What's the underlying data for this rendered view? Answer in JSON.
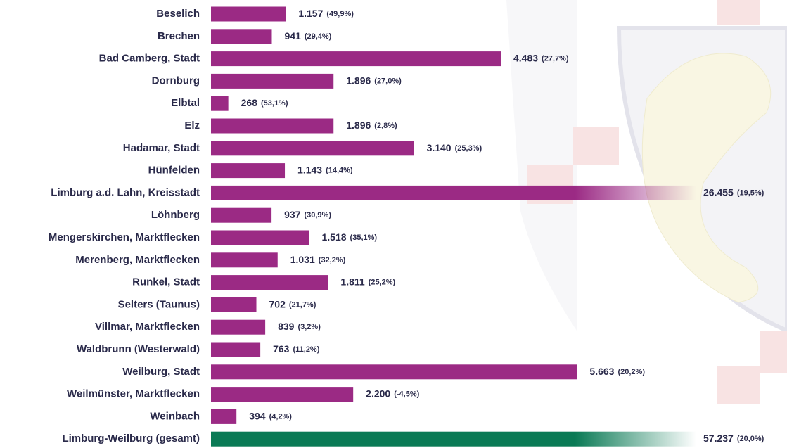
{
  "chart_data": {
    "type": "bar",
    "categories": [
      "Beselich",
      "Brechen",
      "Bad Camberg, Stadt",
      "Dornburg",
      "Elbtal",
      "Elz",
      "Hadamar, Stadt",
      "Hünfelden",
      "Limburg a.d. Lahn, Kreisstadt",
      "Löhnberg",
      "Mengerskirchen, Marktflecken",
      "Merenberg, Marktflecken",
      "Runkel, Stadt",
      "Selters (Taunus)",
      "Villmar, Marktflecken",
      "Waldbrunn (Westerwald)",
      "Weilburg, Stadt",
      "Weilmünster, Marktflecken",
      "Weinbach",
      "Limburg-Weilburg (gesamt)"
    ],
    "values": [
      1157,
      941,
      4483,
      1896,
      268,
      1896,
      3140,
      1143,
      26455,
      937,
      1518,
      1031,
      1811,
      702,
      839,
      763,
      5663,
      2200,
      394,
      57237
    ],
    "value_labels": [
      "1.157",
      "941",
      "4.483",
      "1.896",
      "268",
      "1.896",
      "3.140",
      "1.143",
      "26.455",
      "937",
      "1.518",
      "1.031",
      "1.811",
      "702",
      "839",
      "763",
      "5.663",
      "2.200",
      "394",
      "57.237"
    ],
    "changes": [
      49.9,
      29.4,
      27.7,
      27.0,
      53.1,
      2.8,
      25.3,
      14.4,
      19.5,
      30.9,
      35.1,
      32.2,
      25.2,
      21.7,
      3.2,
      11.2,
      20.2,
      -4.5,
      4.2,
      20.0
    ],
    "change_labels": [
      "(49,9%)",
      "(29,4%)",
      "(27,7%)",
      "(27,0%)",
      "(53,1%)",
      "(2,8%)",
      "(25,3%)",
      "(14,4%)",
      "(19,5%)",
      "(30,9%)",
      "(35,1%)",
      "(32,2%)",
      "(25,2%)",
      "(21,7%)",
      "(3,2%)",
      "(11,2%)",
      "(20,2%)",
      "(-4,5%)",
      "(4,2%)",
      "(20,0%)"
    ],
    "colors": [
      "#9b2a84",
      "#9b2a84",
      "#9b2a84",
      "#9b2a84",
      "#9b2a84",
      "#9b2a84",
      "#9b2a84",
      "#9b2a84",
      "#9b2a84",
      "#9b2a84",
      "#9b2a84",
      "#9b2a84",
      "#9b2a84",
      "#9b2a84",
      "#9b2a84",
      "#9b2a84",
      "#9b2a84",
      "#9b2a84",
      "#9b2a84",
      "#0a7a55"
    ]
  }
}
